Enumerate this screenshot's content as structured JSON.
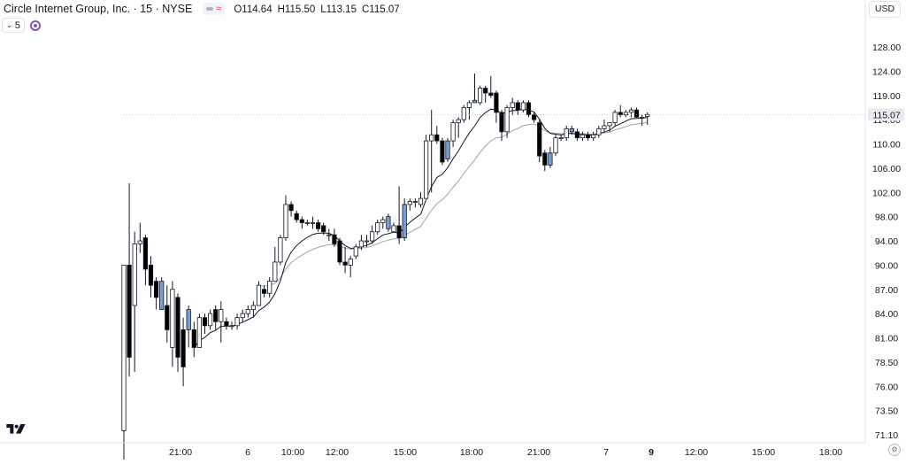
{
  "header": {
    "title": "Circle Internet Group, Inc. · 15 · NYSE",
    "ohlc": [
      {
        "key": "O",
        "value": "114.64"
      },
      {
        "key": "H",
        "value": "115.50"
      },
      {
        "key": "L",
        "value": "113.15"
      },
      {
        "key": "C",
        "value": "115.07"
      }
    ],
    "indicator_count": "5",
    "currency": "USD"
  },
  "colors": {
    "up_border": "#131722",
    "up_fill": "#ffffff",
    "down_fill": "#000000",
    "highlight_fill": "#7a9fd8",
    "ma_fast": "#131722",
    "ma_slow": "#a0a3ab",
    "grid": "#f0f3fa",
    "last_price_box": "#e9ebf0"
  },
  "chart_data": {
    "type": "candlestick",
    "y_ticks": [
      "71.10",
      "73.50",
      "76.00",
      "78.50",
      "81.00",
      "84.00",
      "87.00",
      "90.00",
      "94.00",
      "98.00",
      "102.00",
      "106.00",
      "110.00",
      "114.00",
      "119.00",
      "124.00",
      "128.00"
    ],
    "x_ticks": [
      {
        "label": "21:00",
        "bold": false
      },
      {
        "label": "6",
        "bold": false
      },
      {
        "label": "10:00",
        "bold": false
      },
      {
        "label": "12:00",
        "bold": false
      },
      {
        "label": "15:00",
        "bold": false
      },
      {
        "label": "18:00",
        "bold": false
      },
      {
        "label": "21:00",
        "bold": false
      },
      {
        "label": "7",
        "bold": false
      },
      {
        "label": "9",
        "bold": true
      },
      {
        "label": "12:00",
        "bold": false
      },
      {
        "label": "15:00",
        "bold": false
      },
      {
        "label": "18:00",
        "bold": false
      }
    ],
    "last_price": "115.07",
    "candles": [
      {
        "o": 71.5,
        "h": 90.0,
        "l": 68.0,
        "c": 90.0
      },
      {
        "o": 90.0,
        "h": 103.5,
        "l": 77.0,
        "c": 79.0
      },
      {
        "o": 85.0,
        "h": 95.5,
        "l": 77.5,
        "c": 93.5
      },
      {
        "o": 93.5,
        "h": 97.0,
        "l": 92.0,
        "c": 94.0
      },
      {
        "o": 94.5,
        "h": 95.0,
        "l": 87.5,
        "c": 89.5
      },
      {
        "o": 90.0,
        "h": 91.5,
        "l": 86.0,
        "c": 87.5
      },
      {
        "o": 88.0,
        "h": 88.5,
        "l": 84.5,
        "c": 86.0
      },
      {
        "o": 88.0,
        "h": 88.5,
        "l": 84.5,
        "c": 84.5,
        "hl": true
      },
      {
        "o": 85.0,
        "h": 87.5,
        "l": 80.5,
        "c": 82.0
      },
      {
        "o": 80.0,
        "h": 88.0,
        "l": 78.0,
        "c": 87.0
      },
      {
        "o": 86.0,
        "h": 86.5,
        "l": 77.5,
        "c": 79.0
      },
      {
        "o": 82.0,
        "h": 83.5,
        "l": 76.0,
        "c": 78.0
      },
      {
        "o": 84.5,
        "h": 85.0,
        "l": 80.0,
        "c": 82.0,
        "hl": true
      },
      {
        "o": 82.0,
        "h": 83.0,
        "l": 79.0,
        "c": 80.0
      },
      {
        "o": 80.0,
        "h": 84.0,
        "l": 80.0,
        "c": 83.5
      },
      {
        "o": 83.5,
        "h": 84.0,
        "l": 81.5,
        "c": 82.5
      },
      {
        "o": 82.5,
        "h": 84.5,
        "l": 82.0,
        "c": 84.0
      },
      {
        "o": 84.5,
        "h": 85.0,
        "l": 82.0,
        "c": 83.0
      },
      {
        "o": 83.0,
        "h": 85.5,
        "l": 80.5,
        "c": 84.5
      },
      {
        "o": 83.0,
        "h": 83.5,
        "l": 82.0,
        "c": 82.5
      },
      {
        "o": 82.5,
        "h": 83.0,
        "l": 82.0,
        "c": 82.5
      },
      {
        "o": 82.5,
        "h": 84.0,
        "l": 82.0,
        "c": 83.5
      },
      {
        "o": 83.5,
        "h": 84.5,
        "l": 83.0,
        "c": 84.0
      },
      {
        "o": 84.0,
        "h": 85.0,
        "l": 83.5,
        "c": 84.5
      },
      {
        "o": 84.5,
        "h": 85.5,
        "l": 83.5,
        "c": 85.0
      },
      {
        "o": 85.0,
        "h": 88.0,
        "l": 85.0,
        "c": 87.5
      },
      {
        "o": 87.0,
        "h": 87.5,
        "l": 86.0,
        "c": 86.5
      },
      {
        "o": 86.5,
        "h": 88.5,
        "l": 86.0,
        "c": 88.0
      },
      {
        "o": 88.0,
        "h": 93.0,
        "l": 88.0,
        "c": 90.5
      },
      {
        "o": 90.5,
        "h": 95.0,
        "l": 90.0,
        "c": 94.5
      },
      {
        "o": 94.5,
        "h": 101.5,
        "l": 94.0,
        "c": 100.0
      },
      {
        "o": 100.0,
        "h": 100.5,
        "l": 98.0,
        "c": 99.0
      },
      {
        "o": 98.5,
        "h": 99.0,
        "l": 97.0,
        "c": 97.5
      },
      {
        "o": 97.5,
        "h": 98.0,
        "l": 96.0,
        "c": 97.0
      },
      {
        "o": 97.0,
        "h": 97.5,
        "l": 96.5,
        "c": 97.0
      },
      {
        "o": 97.0,
        "h": 98.0,
        "l": 96.0,
        "c": 97.0
      },
      {
        "o": 97.0,
        "h": 97.5,
        "l": 95.5,
        "c": 96.0
      },
      {
        "o": 96.5,
        "h": 97.0,
        "l": 95.0,
        "c": 95.5
      },
      {
        "o": 95.0,
        "h": 96.0,
        "l": 94.0,
        "c": 95.0
      },
      {
        "o": 95.0,
        "h": 96.0,
        "l": 93.0,
        "c": 93.5
      },
      {
        "o": 94.0,
        "h": 94.5,
        "l": 90.0,
        "c": 90.5
      },
      {
        "o": 90.5,
        "h": 93.0,
        "l": 89.0,
        "c": 90.0
      },
      {
        "o": 90.0,
        "h": 91.5,
        "l": 88.5,
        "c": 91.0
      },
      {
        "o": 91.5,
        "h": 93.5,
        "l": 91.0,
        "c": 93.0
      },
      {
        "o": 93.0,
        "h": 95.0,
        "l": 92.5,
        "c": 94.0
      },
      {
        "o": 94.0,
        "h": 95.0,
        "l": 93.0,
        "c": 94.0
      },
      {
        "o": 94.0,
        "h": 96.5,
        "l": 93.5,
        "c": 95.5
      },
      {
        "o": 95.5,
        "h": 97.5,
        "l": 95.0,
        "c": 97.0
      },
      {
        "o": 97.0,
        "h": 98.0,
        "l": 96.0,
        "c": 97.5
      },
      {
        "o": 98.0,
        "h": 98.5,
        "l": 95.5,
        "c": 96.0,
        "hl": true
      },
      {
        "o": 95.5,
        "h": 97.0,
        "l": 95.5,
        "c": 96.5
      },
      {
        "o": 96.5,
        "h": 103.0,
        "l": 93.5,
        "c": 94.5
      },
      {
        "o": 94.5,
        "h": 101.0,
        "l": 94.0,
        "c": 100.0,
        "hl": true
      },
      {
        "o": 100.0,
        "h": 101.0,
        "l": 99.0,
        "c": 100.5
      },
      {
        "o": 100.5,
        "h": 101.0,
        "l": 99.5,
        "c": 100.5
      },
      {
        "o": 100.0,
        "h": 102.0,
        "l": 99.5,
        "c": 101.0
      },
      {
        "o": 101.0,
        "h": 111.5,
        "l": 101.0,
        "c": 110.5
      },
      {
        "o": 110.5,
        "h": 116.0,
        "l": 102.0,
        "c": 111.5
      },
      {
        "o": 111.5,
        "h": 113.0,
        "l": 110.0,
        "c": 110.5
      },
      {
        "o": 110.5,
        "h": 111.0,
        "l": 106.5,
        "c": 107.0
      },
      {
        "o": 107.5,
        "h": 111.0,
        "l": 107.0,
        "c": 110.5,
        "hl": true
      },
      {
        "o": 110.5,
        "h": 114.0,
        "l": 109.5,
        "c": 113.5
      },
      {
        "o": 113.5,
        "h": 114.5,
        "l": 111.0,
        "c": 114.0
      },
      {
        "o": 114.0,
        "h": 117.0,
        "l": 113.5,
        "c": 116.5
      },
      {
        "o": 116.5,
        "h": 118.0,
        "l": 114.0,
        "c": 117.5
      },
      {
        "o": 118.0,
        "h": 123.5,
        "l": 117.5,
        "c": 117.5,
        "hl": true
      },
      {
        "o": 117.5,
        "h": 121.0,
        "l": 117.0,
        "c": 120.5
      },
      {
        "o": 120.5,
        "h": 121.0,
        "l": 117.5,
        "c": 119.5
      },
      {
        "o": 119.5,
        "h": 123.0,
        "l": 118.5,
        "c": 119.0
      },
      {
        "o": 119.5,
        "h": 120.0,
        "l": 113.5,
        "c": 115.5
      },
      {
        "o": 115.5,
        "h": 116.0,
        "l": 110.5,
        "c": 112.0
      },
      {
        "o": 112.0,
        "h": 117.0,
        "l": 111.0,
        "c": 116.5
      },
      {
        "o": 116.5,
        "h": 118.5,
        "l": 115.0,
        "c": 117.5
      },
      {
        "o": 117.5,
        "h": 118.0,
        "l": 115.0,
        "c": 116.0
      },
      {
        "o": 116.0,
        "h": 118.0,
        "l": 115.5,
        "c": 117.5
      },
      {
        "o": 117.5,
        "h": 118.0,
        "l": 114.5,
        "c": 115.0
      },
      {
        "o": 115.0,
        "h": 115.5,
        "l": 113.5,
        "c": 114.0
      },
      {
        "o": 113.5,
        "h": 114.0,
        "l": 107.0,
        "c": 108.0
      },
      {
        "o": 108.5,
        "h": 109.0,
        "l": 105.5,
        "c": 106.5
      },
      {
        "o": 106.5,
        "h": 109.5,
        "l": 106.0,
        "c": 108.5,
        "hl": true
      },
      {
        "o": 108.5,
        "h": 111.5,
        "l": 108.0,
        "c": 111.0
      },
      {
        "o": 111.0,
        "h": 111.5,
        "l": 110.5,
        "c": 111.0
      },
      {
        "o": 111.0,
        "h": 113.0,
        "l": 110.5,
        "c": 112.5
      },
      {
        "o": 112.5,
        "h": 113.0,
        "l": 111.5,
        "c": 112.0,
        "hl": true
      },
      {
        "o": 112.0,
        "h": 112.5,
        "l": 110.5,
        "c": 111.0
      },
      {
        "o": 111.0,
        "h": 112.0,
        "l": 110.5,
        "c": 111.5
      },
      {
        "o": 111.5,
        "h": 112.0,
        "l": 110.5,
        "c": 111.0
      },
      {
        "o": 111.0,
        "h": 112.0,
        "l": 110.5,
        "c": 111.5
      },
      {
        "o": 111.5,
        "h": 113.0,
        "l": 111.0,
        "c": 112.5
      },
      {
        "o": 112.5,
        "h": 114.0,
        "l": 112.0,
        "c": 113.0
      },
      {
        "o": 113.0,
        "h": 113.5,
        "l": 112.0,
        "c": 113.5
      },
      {
        "o": 113.5,
        "h": 116.0,
        "l": 113.0,
        "c": 115.5
      },
      {
        "o": 115.5,
        "h": 117.0,
        "l": 114.5,
        "c": 115.0
      },
      {
        "o": 115.0,
        "h": 116.0,
        "l": 114.5,
        "c": 115.5
      },
      {
        "o": 115.5,
        "h": 116.5,
        "l": 114.5,
        "c": 116.0
      },
      {
        "o": 116.0,
        "h": 116.5,
        "l": 114.5,
        "c": 114.5
      },
      {
        "o": 114.5,
        "h": 115.0,
        "l": 113.0,
        "c": 114.5
      },
      {
        "o": 114.64,
        "h": 115.5,
        "l": 113.15,
        "c": 115.07
      }
    ]
  }
}
